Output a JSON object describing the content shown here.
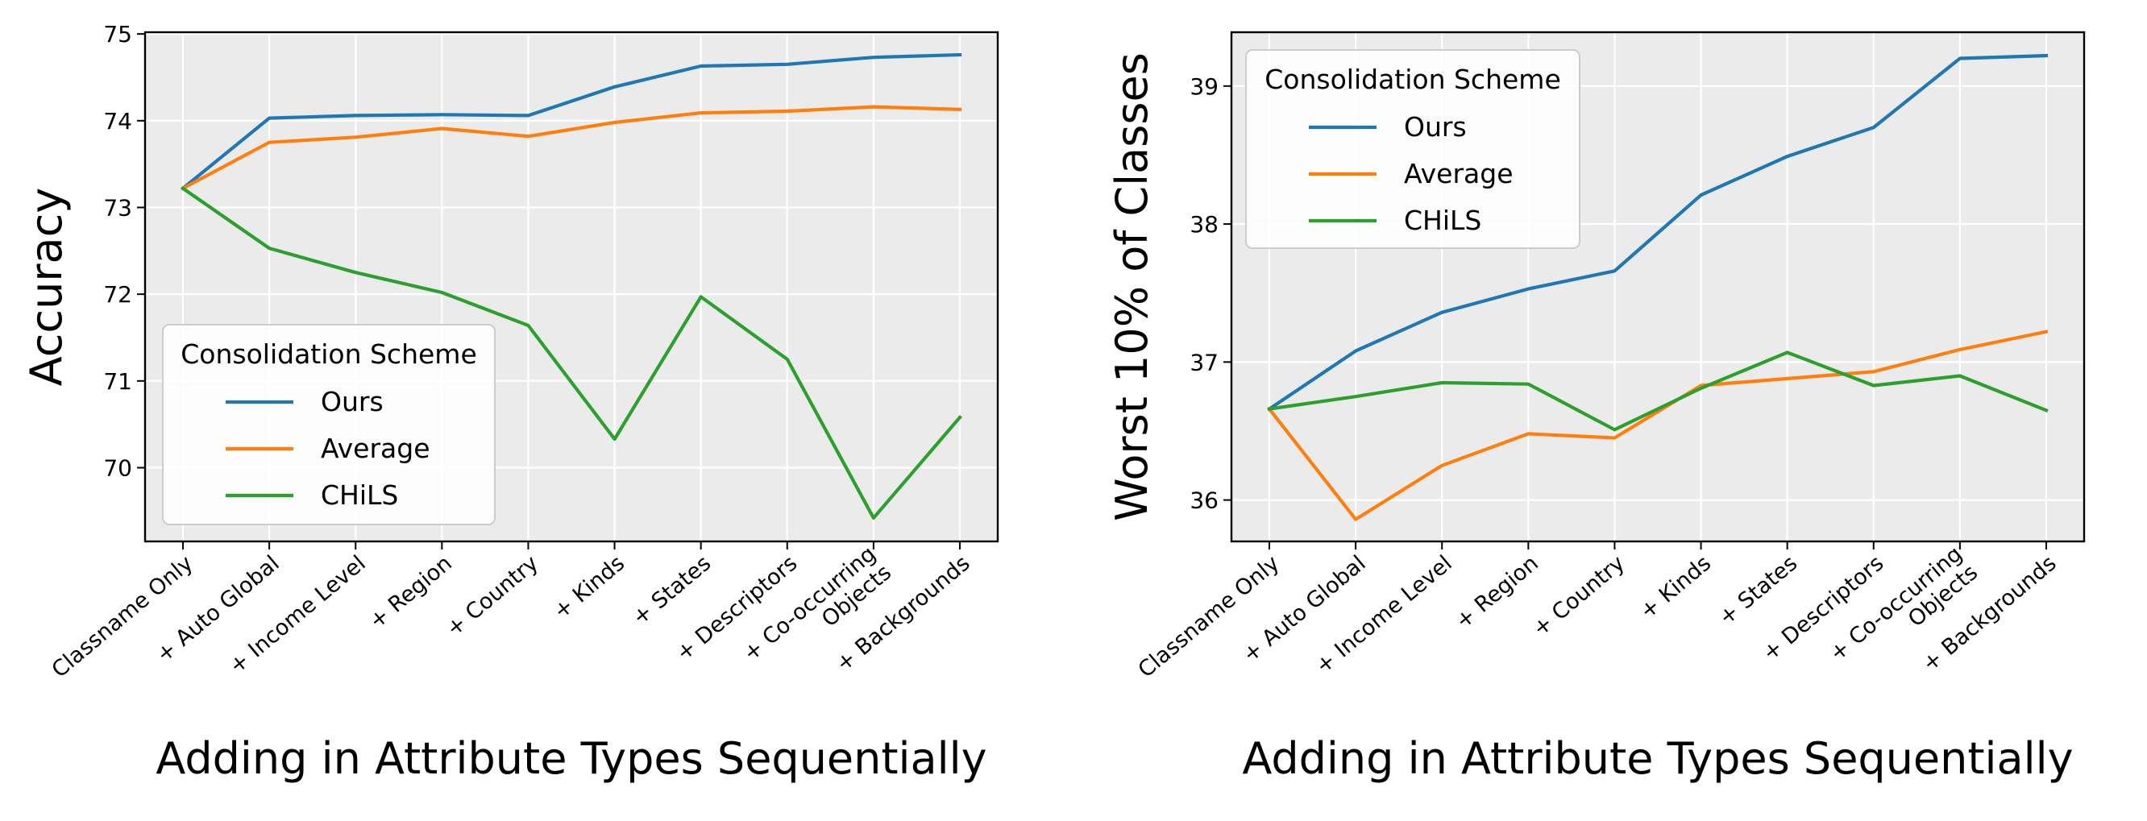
{
  "chart_data": [
    {
      "type": "line",
      "categories": [
        "Classname Only",
        "+ Auto Global",
        "+ Income Level",
        "+ Region",
        "+ Country",
        "+ Kinds",
        "+ States",
        "+ Descriptors",
        "+ Co-occurring\nObjects",
        "+ Backgrounds"
      ],
      "series": [
        {
          "name": "Ours",
          "color": "#1f77b4",
          "values": [
            73.22,
            74.03,
            74.06,
            74.07,
            74.06,
            74.39,
            74.63,
            74.65,
            74.73,
            74.76
          ]
        },
        {
          "name": "Average",
          "color": "#ff7f0e",
          "values": [
            73.22,
            73.75,
            73.81,
            73.91,
            73.82,
            73.98,
            74.09,
            74.11,
            74.16,
            74.13
          ]
        },
        {
          "name": "CHiLS",
          "color": "#2ca02c",
          "values": [
            73.22,
            72.53,
            72.25,
            72.02,
            71.64,
            70.33,
            71.97,
            71.25,
            69.42,
            70.58
          ]
        }
      ],
      "title": "",
      "xlabel": "Adding in Attribute Types Sequentially",
      "ylabel": "Accuracy",
      "ylim": [
        69.15,
        75.02
      ],
      "yticks": [
        70,
        71,
        72,
        73,
        74,
        75
      ],
      "legend": {
        "title": "Consolidation Scheme",
        "placement": "lower-left"
      },
      "grid": true
    },
    {
      "type": "line",
      "categories": [
        "Classname Only",
        "+ Auto Global",
        "+ Income Level",
        "+ Region",
        "+ Country",
        "+ Kinds",
        "+ States",
        "+ Descriptors",
        "+ Co-occurring\nObjects",
        "+ Backgrounds"
      ],
      "series": [
        {
          "name": "Ours",
          "color": "#1f77b4",
          "values": [
            36.66,
            37.08,
            37.36,
            37.53,
            37.66,
            38.21,
            38.49,
            38.7,
            39.2,
            39.22
          ]
        },
        {
          "name": "Average",
          "color": "#ff7f0e",
          "values": [
            36.66,
            35.86,
            36.25,
            36.48,
            36.45,
            36.83,
            36.88,
            36.93,
            37.09,
            37.22
          ]
        },
        {
          "name": "CHiLS",
          "color": "#2ca02c",
          "values": [
            36.66,
            36.75,
            36.85,
            36.84,
            36.51,
            36.81,
            37.07,
            36.83,
            36.9,
            36.65
          ]
        }
      ],
      "title": "",
      "xlabel": "Adding in Attribute Types Sequentially",
      "ylabel": "Worst 10% of Classes",
      "ylim": [
        35.7,
        39.39
      ],
      "yticks": [
        36,
        37,
        38,
        39
      ],
      "legend": {
        "title": "Consolidation Scheme",
        "placement": "upper-left"
      },
      "grid": true
    }
  ]
}
